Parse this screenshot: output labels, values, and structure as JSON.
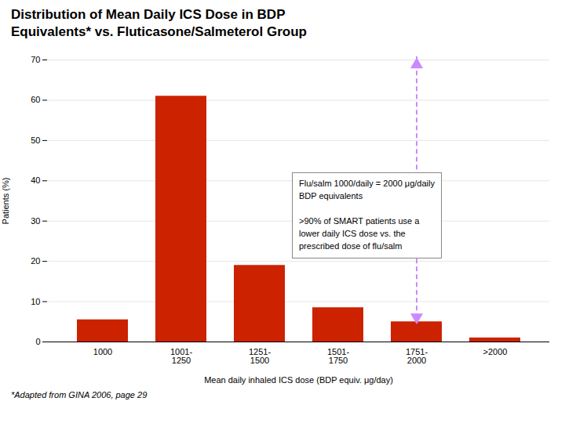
{
  "chart_data": {
    "type": "bar",
    "title": "Distribution of Mean Daily ICS Dose in BDP\nEquivalents* vs. Fluticasone/Salmeterol Group",
    "xlabel": "Mean daily inhaled ICS dose (BDP equiv. μg/day)",
    "ylabel": "Patients (%)",
    "categories": [
      "1000",
      "1001-\n1250",
      "1251-\n1500",
      "1501-\n1750",
      "1751-\n2000",
      ">2000"
    ],
    "values": [
      5.5,
      61,
      19,
      8.5,
      5.0,
      1.0
    ],
    "color": "#CC2200",
    "ylim": [
      0,
      70
    ],
    "yticks": [
      0,
      10,
      20,
      30,
      40,
      50,
      60,
      70
    ],
    "grid": true,
    "annotations": [
      {
        "text": "Flu/salm 1000/daily = 2000 μg/daily\nBDP equivalents\n\n>90% of SMART patients use a\nlower daily ICS dose vs. the\nprescribed dose of flu/salm",
        "category": "1751-\n2000",
        "color": "#CC88FF"
      }
    ],
    "caption": "*Adapted from GINA 2006, page 29"
  }
}
